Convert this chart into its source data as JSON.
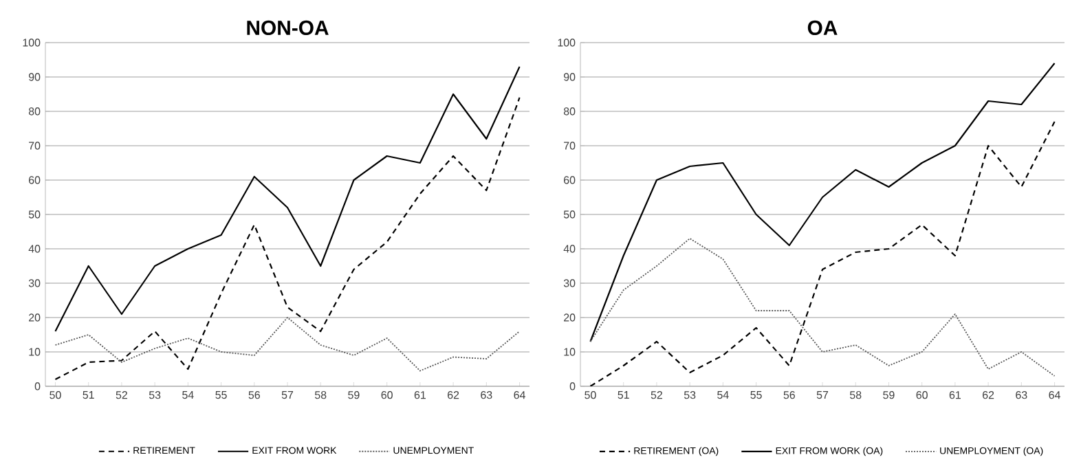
{
  "chart_data": [
    {
      "type": "line",
      "title": "NON-OA",
      "categories": [
        "50",
        "51",
        "52",
        "53",
        "54",
        "55",
        "56",
        "57",
        "58",
        "59",
        "60",
        "61",
        "62",
        "63",
        "64"
      ],
      "ylim": [
        0,
        100
      ],
      "yticks": [
        0,
        10,
        20,
        30,
        40,
        50,
        60,
        70,
        80,
        90,
        100
      ],
      "grid": "y",
      "legend": "bottom",
      "series": [
        {
          "name": "RETIREMENT",
          "color": "#000000",
          "line_style": "dashed",
          "values": [
            2,
            7,
            7.5,
            16,
            5,
            27,
            47,
            23,
            16,
            34,
            42,
            56,
            67,
            57,
            84
          ]
        },
        {
          "name": "EXIT FROM WORK",
          "color": "#000000",
          "line_style": "solid",
          "values": [
            16,
            35,
            21,
            35,
            40,
            44,
            61,
            52,
            35,
            60,
            67,
            65,
            85,
            72,
            93
          ]
        },
        {
          "name": "UNEMPLOYMENT",
          "color": "#555555",
          "line_style": "dotted",
          "values": [
            12,
            15,
            7,
            11,
            14,
            10,
            9,
            20,
            12,
            9,
            14,
            4.5,
            8.5,
            8,
            16
          ]
        }
      ]
    },
    {
      "type": "line",
      "title": "OA",
      "categories": [
        "50",
        "51",
        "52",
        "53",
        "54",
        "55",
        "56",
        "57",
        "58",
        "59",
        "60",
        "61",
        "62",
        "63",
        "64"
      ],
      "ylim": [
        0,
        100
      ],
      "yticks": [
        0,
        10,
        20,
        30,
        40,
        50,
        60,
        70,
        80,
        90,
        100
      ],
      "grid": "y",
      "legend": "bottom",
      "series": [
        {
          "name": "RETIREMENT (OA)",
          "color": "#000000",
          "line_style": "dashed",
          "values": [
            0,
            6,
            13,
            4,
            9,
            17,
            6,
            34,
            39,
            40,
            47,
            38,
            70,
            58,
            77
          ]
        },
        {
          "name": "EXIT FROM WORK (OA)",
          "color": "#000000",
          "line_style": "solid",
          "values": [
            13,
            38,
            60,
            64,
            65,
            50,
            41,
            55,
            63,
            58,
            65,
            70,
            83,
            82,
            94
          ]
        },
        {
          "name": "UNEMPLOYMENT (OA)",
          "color": "#555555",
          "line_style": "dotted",
          "values": [
            13,
            28,
            35,
            43,
            37,
            22,
            22,
            10,
            12,
            6,
            10,
            21,
            5,
            10,
            3
          ]
        }
      ]
    }
  ]
}
